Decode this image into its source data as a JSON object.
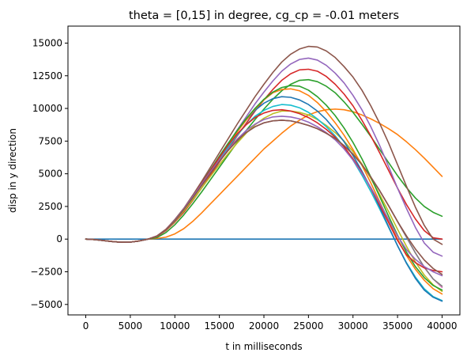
{
  "chart_data": {
    "type": "line",
    "title": "theta = [0,15] in degree, cg_cp = -0.01 meters",
    "xlabel": "t in milliseconds",
    "ylabel": "disp in y direction",
    "xlim": [
      -2000,
      42000
    ],
    "ylim": [
      -5800,
      16300
    ],
    "xticks": [
      0,
      5000,
      10000,
      15000,
      20000,
      25000,
      30000,
      35000,
      40000
    ],
    "yticks": [
      -5000,
      -2500,
      0,
      2500,
      5000,
      7500,
      10000,
      12500,
      15000
    ],
    "grid": false,
    "legend": "none",
    "x": [
      0,
      1000,
      2000,
      3000,
      4000,
      5000,
      6000,
      7000,
      8000,
      9000,
      10000,
      11000,
      12000,
      13000,
      14000,
      15000,
      16000,
      17000,
      18000,
      19000,
      20000,
      21000,
      22000,
      23000,
      24000,
      25000,
      26000,
      27000,
      28000,
      29000,
      30000,
      31000,
      32000,
      33000,
      34000,
      35000,
      36000,
      37000,
      38000,
      39000,
      40000
    ],
    "series": [
      {
        "color": "#1f77b4",
        "values": [
          0,
          0,
          0,
          0,
          0,
          0,
          0,
          0,
          0,
          0,
          0,
          0,
          0,
          0,
          0,
          0,
          0,
          0,
          0,
          0,
          0,
          0,
          0,
          0,
          0,
          0,
          0,
          0,
          0,
          0,
          0,
          0,
          0,
          0,
          0,
          0,
          0,
          0,
          0,
          0,
          0
        ]
      },
      {
        "color": "#ff7f0e",
        "values": [
          0,
          -35,
          -110,
          -190,
          -240,
          -230,
          -140,
          0,
          50,
          150,
          400,
          800,
          1350,
          2000,
          2700,
          3400,
          4100,
          4800,
          5500,
          6200,
          6900,
          7500,
          8100,
          8650,
          9100,
          9500,
          9750,
          9900,
          9950,
          9900,
          9750,
          9500,
          9200,
          8850,
          8450,
          8000,
          7450,
          6850,
          6200,
          5500,
          4800
        ]
      },
      {
        "color": "#2ca02c",
        "values": [
          0,
          -35,
          -110,
          -190,
          -240,
          -230,
          -140,
          0,
          120,
          500,
          1100,
          1850,
          2700,
          3600,
          4550,
          5500,
          6450,
          7400,
          8300,
          9150,
          9950,
          10700,
          11350,
          11850,
          12150,
          12200,
          12050,
          11700,
          11200,
          10500,
          9700,
          8800,
          7850,
          6850,
          5850,
          4850,
          3950,
          3150,
          2500,
          2050,
          1750
        ]
      },
      {
        "color": "#d62728",
        "values": [
          0,
          -35,
          -110,
          -190,
          -240,
          -230,
          -140,
          0,
          200,
          650,
          1300,
          2050,
          2950,
          3900,
          4900,
          5900,
          6900,
          7900,
          8850,
          9800,
          10650,
          11450,
          12150,
          12650,
          12950,
          13000,
          12850,
          12450,
          11850,
          11100,
          10200,
          9100,
          7900,
          6600,
          5250,
          3900,
          2650,
          1550,
          650,
          100,
          0
        ]
      },
      {
        "color": "#9467bd",
        "values": [
          0,
          -35,
          -110,
          -190,
          -240,
          -230,
          -140,
          0,
          220,
          700,
          1400,
          2200,
          3150,
          4150,
          5200,
          6250,
          7300,
          8350,
          9350,
          10350,
          11250,
          12100,
          12850,
          13400,
          13750,
          13850,
          13700,
          13300,
          12700,
          11950,
          11000,
          9900,
          8600,
          7150,
          5550,
          3900,
          2350,
          900,
          -300,
          -1000,
          -1300
        ]
      },
      {
        "color": "#8c564b",
        "values": [
          0,
          -35,
          -110,
          -190,
          -240,
          -230,
          -140,
          0,
          250,
          750,
          1500,
          2350,
          3350,
          4400,
          5500,
          6600,
          7700,
          8800,
          9850,
          10900,
          11850,
          12750,
          13550,
          14150,
          14550,
          14750,
          14700,
          14400,
          13900,
          13200,
          12400,
          11400,
          10200,
          8850,
          7350,
          5700,
          4050,
          2450,
          1050,
          0,
          -400
        ]
      },
      {
        "color": "#e377c2",
        "values": [
          0,
          -35,
          -110,
          -190,
          -240,
          -230,
          -140,
          0,
          230,
          720,
          1400,
          2250,
          3150,
          4100,
          5050,
          5950,
          6800,
          7550,
          8150,
          8600,
          8900,
          9050,
          9100,
          9050,
          8900,
          8700,
          8450,
          8100,
          7700,
          7150,
          6500,
          5700,
          4750,
          3700,
          2550,
          1350,
          150,
          -1050,
          -2150,
          -3050,
          -3700
        ]
      },
      {
        "color": "#7f7f7f",
        "values": [
          0,
          -35,
          -110,
          -190,
          -240,
          -230,
          -140,
          0,
          230,
          720,
          1400,
          2250,
          3150,
          4100,
          5050,
          5950,
          6800,
          7550,
          8150,
          8600,
          8900,
          9050,
          9100,
          9050,
          8900,
          8700,
          8450,
          8100,
          7700,
          7150,
          6500,
          5700,
          4750,
          3700,
          2550,
          1350,
          150,
          -1050,
          -2150,
          -3050,
          -3600
        ]
      },
      {
        "color": "#bcbd22",
        "values": [
          0,
          -35,
          -110,
          -190,
          -240,
          -230,
          -140,
          0,
          220,
          700,
          1350,
          2150,
          3000,
          3900,
          4800,
          5700,
          6550,
          7350,
          8100,
          8750,
          9250,
          9600,
          9800,
          9800,
          9700,
          9500,
          9150,
          8700,
          8150,
          7500,
          6700,
          5750,
          4650,
          3400,
          2100,
          750,
          -550,
          -1750,
          -2750,
          -3500,
          -4000
        ]
      },
      {
        "color": "#17becf",
        "values": [
          0,
          -35,
          -110,
          -190,
          -240,
          -230,
          -140,
          0,
          230,
          720,
          1400,
          2250,
          3150,
          4100,
          5100,
          6100,
          7050,
          7950,
          8750,
          9400,
          9850,
          10150,
          10300,
          10250,
          10050,
          9700,
          9200,
          8600,
          7900,
          7050,
          6050,
          4900,
          3650,
          2300,
          900,
          -500,
          -1800,
          -2900,
          -3800,
          -4400,
          -4700
        ]
      },
      {
        "color": "#1f77b4",
        "values": [
          0,
          -35,
          -110,
          -190,
          -240,
          -230,
          -140,
          0,
          240,
          740,
          1450,
          2300,
          3250,
          4250,
          5300,
          6300,
          7300,
          8250,
          9100,
          9850,
          10400,
          10750,
          10900,
          10850,
          10650,
          10300,
          9800,
          9150,
          8350,
          7450,
          6400,
          5200,
          3900,
          2450,
          950,
          -500,
          -1850,
          -3000,
          -3900,
          -4450,
          -4750
        ]
      },
      {
        "color": "#ff7f0e",
        "values": [
          0,
          -35,
          -110,
          -190,
          -240,
          -230,
          -140,
          0,
          240,
          750,
          1450,
          2300,
          3250,
          4250,
          5250,
          6250,
          7250,
          8200,
          9100,
          9950,
          10650,
          11200,
          11450,
          11500,
          11350,
          11000,
          10450,
          9750,
          8900,
          7950,
          6850,
          5650,
          4300,
          2850,
          1400,
          0,
          -1250,
          -2300,
          -3150,
          -3800,
          -4200
        ]
      },
      {
        "color": "#2ca02c",
        "values": [
          0,
          -35,
          -110,
          -190,
          -240,
          -230,
          -140,
          0,
          230,
          730,
          1450,
          2300,
          3250,
          4250,
          5300,
          6350,
          7350,
          8300,
          9200,
          10000,
          10700,
          11250,
          11600,
          11750,
          11700,
          11400,
          10900,
          10250,
          9450,
          8500,
          7400,
          6150,
          4750,
          3250,
          1750,
          300,
          -1000,
          -2100,
          -2950,
          -3550,
          -3900
        ]
      },
      {
        "color": "#d62728",
        "values": [
          0,
          -35,
          -110,
          -190,
          -240,
          -230,
          -140,
          0,
          240,
          740,
          1450,
          2300,
          3250,
          4250,
          5250,
          6250,
          7200,
          8050,
          8750,
          9300,
          9650,
          9850,
          9900,
          9800,
          9600,
          9300,
          8900,
          8400,
          7800,
          7050,
          6150,
          5100,
          3900,
          2600,
          1250,
          -100,
          -1200,
          -1800,
          -2200,
          -2400,
          -2500
        ]
      },
      {
        "color": "#9467bd",
        "values": [
          0,
          -35,
          -110,
          -190,
          -240,
          -230,
          -140,
          0,
          240,
          740,
          1450,
          2300,
          3250,
          4200,
          5150,
          6050,
          6900,
          7650,
          8300,
          8800,
          9150,
          9350,
          9400,
          9350,
          9200,
          8950,
          8600,
          8150,
          7600,
          6900,
          6050,
          5050,
          3950,
          2750,
          1500,
          250,
          -800,
          -1550,
          -2100,
          -2500,
          -2800
        ]
      },
      {
        "color": "#8c564b",
        "values": [
          0,
          -35,
          -110,
          -190,
          -240,
          -230,
          -140,
          0,
          230,
          720,
          1400,
          2250,
          3150,
          4100,
          5050,
          5950,
          6800,
          7550,
          8150,
          8600,
          8900,
          9050,
          9100,
          9050,
          8900,
          8700,
          8450,
          8100,
          7700,
          7150,
          6500,
          5700,
          4750,
          3700,
          2550,
          1350,
          250,
          -750,
          -1600,
          -2250,
          -2700
        ]
      }
    ]
  }
}
